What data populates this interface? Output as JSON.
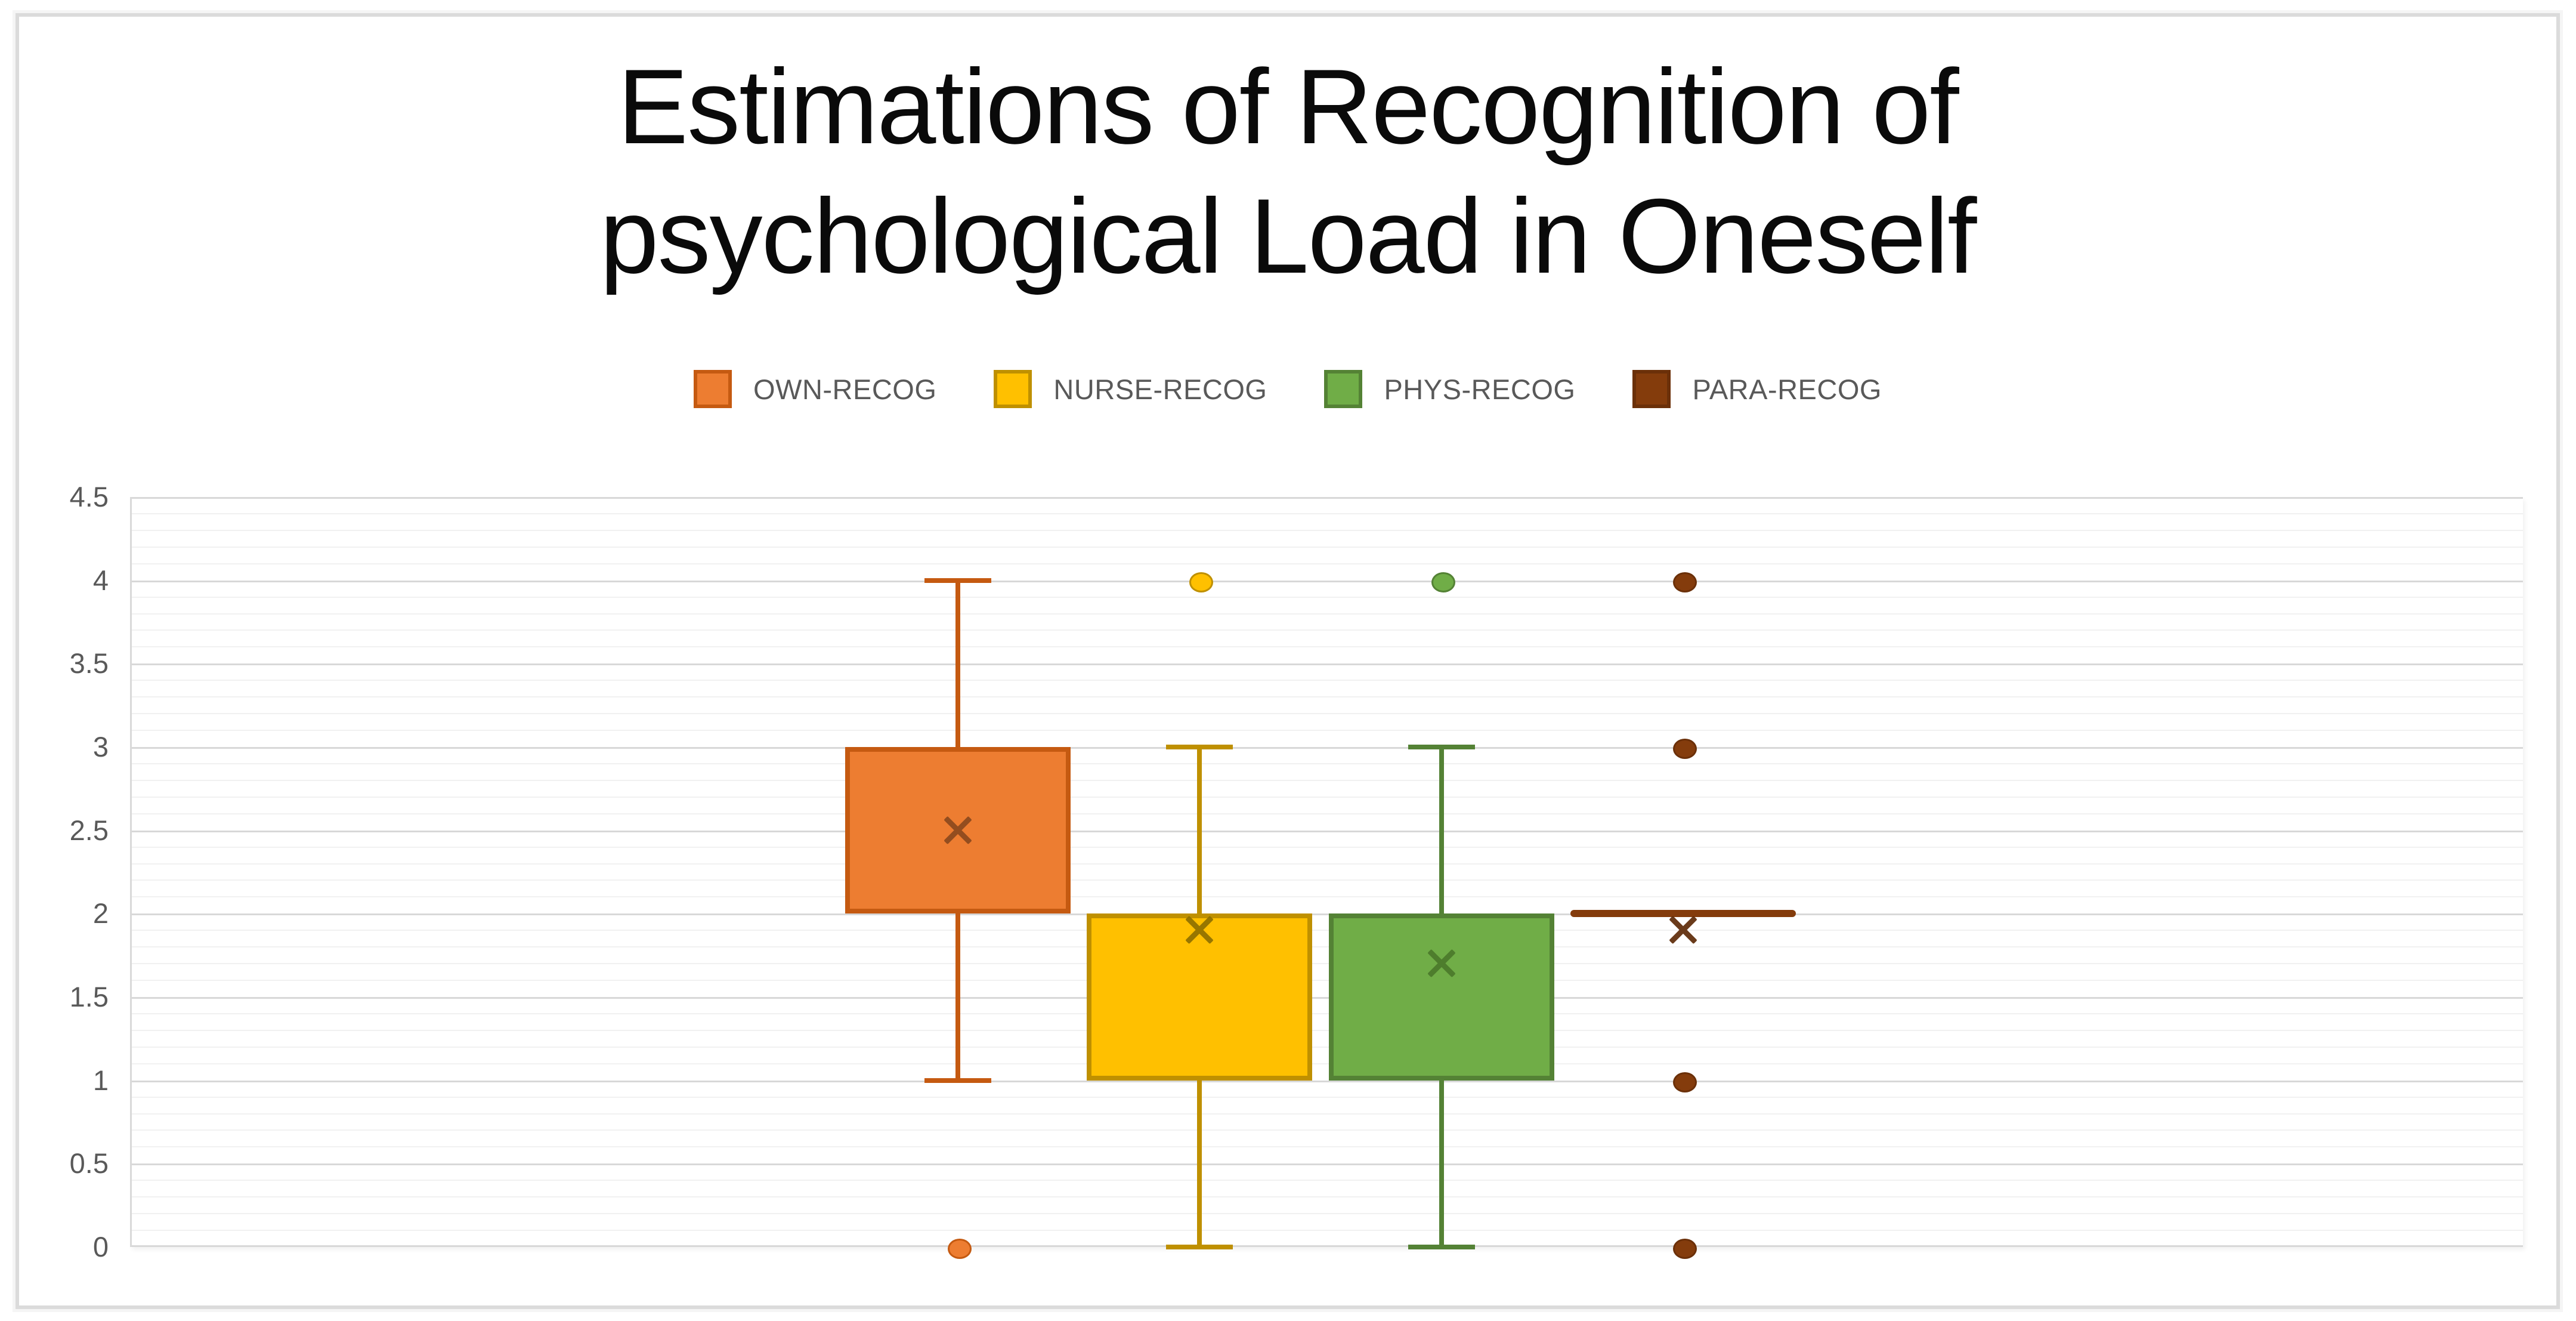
{
  "title": {
    "line1": "Estimations of Recognition of",
    "line2": "psychological Load in Oneself"
  },
  "chart_data": {
    "type": "box",
    "title": "Estimations of Recognition of psychological Load in Oneself",
    "categories": [
      ""
    ],
    "legend_position": "top",
    "y_axis": {
      "min": 0,
      "max": 4.5,
      "major_step": 0.5,
      "minor_step": 0.1,
      "tick_labels": [
        "4.5",
        "4",
        "3.5",
        "3",
        "2.5",
        "2",
        "1.5",
        "1",
        "0.5",
        "0"
      ]
    },
    "grid": {
      "major": true,
      "minor": true
    },
    "series": [
      {
        "name": "OWN-RECOG",
        "fill": "#ED7D31",
        "border": "#C55A11",
        "mean_color": "#8C4A1E",
        "q1": 2,
        "q3": 3,
        "median": null,
        "whisker_low": 1,
        "whisker_high": 4,
        "mean": 2.5,
        "outliers": [
          0
        ]
      },
      {
        "name": "NURSE-RECOG",
        "fill": "#FFC000",
        "border": "#BF9000",
        "mean_color": "#8F7000",
        "q1": 1,
        "q3": 2,
        "median": null,
        "whisker_low": 0,
        "whisker_high": 3,
        "mean": 1.9,
        "outliers": [
          4
        ]
      },
      {
        "name": "PHYS-RECOG",
        "fill": "#70AD47",
        "border": "#548235",
        "mean_color": "#4C7A2B",
        "q1": 1,
        "q3": 2,
        "median": null,
        "whisker_low": 0,
        "whisker_high": 3,
        "mean": 1.7,
        "outliers": [
          4
        ]
      },
      {
        "name": "PARA-RECOG",
        "fill": "#843C0C",
        "border": "#6B3009",
        "mean_color": "#5E2B08",
        "q1": 2,
        "q3": 2,
        "median": 2,
        "whisker_low": 2,
        "whisker_high": 2,
        "mean": 1.9,
        "outliers": [
          4,
          3,
          1,
          0
        ]
      }
    ]
  },
  "style_colors": {
    "figure_border": "#DBDBDB",
    "grid_major": "#D8D8D8",
    "grid_minor": "#F1F1F1",
    "axis_text": "#595959",
    "title_text": "#0a0a0a"
  }
}
